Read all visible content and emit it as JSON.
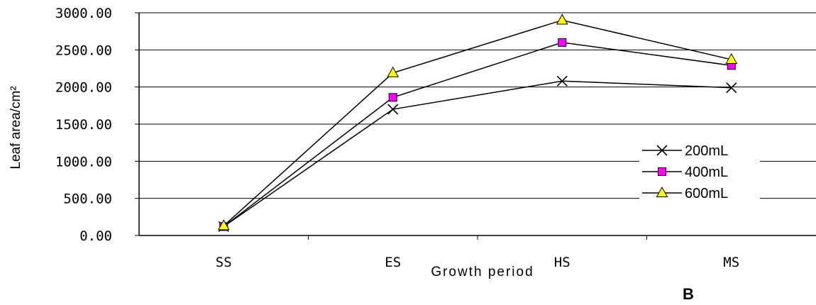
{
  "chart_data": {
    "type": "line",
    "categories": [
      "SS",
      "ES",
      "HS",
      "MS"
    ],
    "series": [
      {
        "name": "200mL",
        "values": [
          120,
          1700,
          2080,
          1990
        ],
        "marker": "x",
        "color": "#000000",
        "fill": "#000000"
      },
      {
        "name": "400mL",
        "values": [
          120,
          1860,
          2600,
          2290
        ],
        "marker": "square",
        "color": "#000000",
        "fill": "#ff00ff"
      },
      {
        "name": "600mL",
        "values": [
          130,
          2190,
          2900,
          2370
        ],
        "marker": "triangle",
        "color": "#000000",
        "fill": "#ffff00"
      }
    ],
    "title": "",
    "xlabel": "Growth period",
    "ylabel": "Leaf area/cm²",
    "ylim": [
      0,
      3000
    ],
    "yticks": [
      "0.00",
      "500.00",
      "1000.00",
      "1500.00",
      "2000.00",
      "2500.00",
      "3000.00"
    ],
    "ytick_values": [
      0,
      500,
      1000,
      1500,
      2000,
      2500,
      3000
    ],
    "grid": "horizontal",
    "legend_position": "right"
  },
  "panel_label": "B"
}
